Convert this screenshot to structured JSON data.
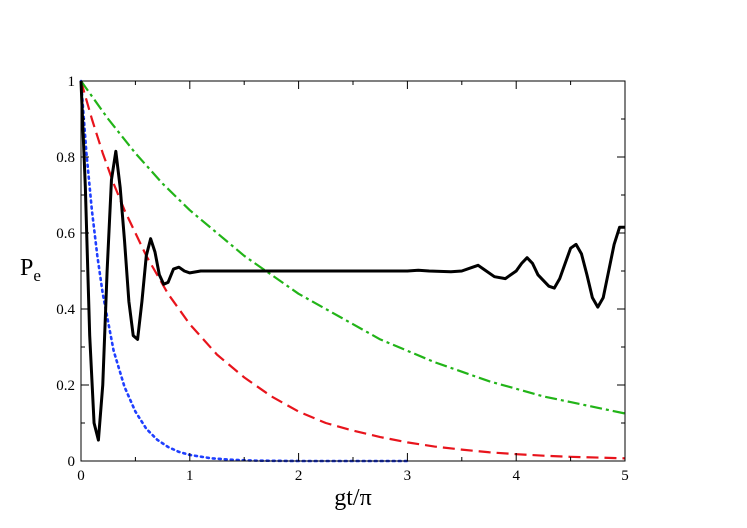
{
  "chart_data": {
    "type": "line",
    "xlabel": "gt/π",
    "ylabel_main": "P",
    "ylabel_sub": "e",
    "xlim": [
      0,
      5
    ],
    "ylim": [
      0,
      1
    ],
    "xticks": [
      0,
      1,
      2,
      3,
      4,
      5
    ],
    "xtick_labels": [
      "0",
      "1",
      "2",
      "3",
      "4",
      "5"
    ],
    "yticks": [
      0,
      0.2,
      0.4,
      0.6,
      0.8,
      1
    ],
    "ytick_labels": [
      "0",
      "0.2",
      "0.4",
      "0.6",
      "0.8",
      "1"
    ],
    "grid": false,
    "series": [
      {
        "style": "dotted",
        "color": "#1f3fff",
        "x": [
          0,
          0.05,
          0.1,
          0.15,
          0.2,
          0.3,
          0.4,
          0.5,
          0.6,
          0.7,
          0.8,
          0.9,
          1.0,
          1.2,
          1.4,
          1.6,
          1.8,
          2.0,
          2.5,
          3.0
        ],
        "y": [
          1.0,
          0.81,
          0.66,
          0.54,
          0.44,
          0.29,
          0.195,
          0.13,
          0.085,
          0.056,
          0.037,
          0.024,
          0.016,
          0.007,
          0.003,
          0.001,
          0.0005,
          0.0,
          0.0,
          0.0
        ]
      },
      {
        "style": "dashed",
        "color": "#e8141c",
        "x": [
          0,
          0.1,
          0.2,
          0.3,
          0.4,
          0.5,
          0.6,
          0.7,
          0.8,
          0.9,
          1.0,
          1.25,
          1.5,
          1.75,
          2.0,
          2.25,
          2.5,
          2.75,
          3.0,
          3.25,
          3.5,
          3.75,
          4.0,
          4.25,
          4.5,
          4.75,
          5.0
        ],
        "y": [
          1.0,
          0.9,
          0.81,
          0.73,
          0.66,
          0.6,
          0.54,
          0.49,
          0.44,
          0.4,
          0.36,
          0.28,
          0.22,
          0.17,
          0.13,
          0.1,
          0.08,
          0.063,
          0.049,
          0.038,
          0.03,
          0.023,
          0.018,
          0.014,
          0.011,
          0.009,
          0.007
        ]
      },
      {
        "style": "dash-dot",
        "color": "#22b418",
        "x": [
          0,
          0.25,
          0.5,
          0.75,
          1.0,
          1.25,
          1.5,
          1.75,
          2.0,
          2.25,
          2.5,
          2.75,
          3.0,
          3.25,
          3.5,
          3.75,
          4.0,
          4.25,
          4.5,
          4.75,
          5.0
        ],
        "y": [
          1.0,
          0.9,
          0.81,
          0.73,
          0.66,
          0.6,
          0.54,
          0.49,
          0.44,
          0.4,
          0.36,
          0.32,
          0.29,
          0.26,
          0.235,
          0.21,
          0.19,
          0.17,
          0.155,
          0.14,
          0.125
        ]
      },
      {
        "style": "solid",
        "color": "#000000",
        "x": [
          0,
          0.04,
          0.08,
          0.12,
          0.16,
          0.2,
          0.24,
          0.28,
          0.32,
          0.36,
          0.4,
          0.44,
          0.48,
          0.52,
          0.56,
          0.6,
          0.64,
          0.68,
          0.72,
          0.76,
          0.8,
          0.85,
          0.9,
          0.95,
          1.0,
          1.1,
          1.2,
          1.5,
          2.0,
          2.5,
          3.0,
          3.1,
          3.2,
          3.4,
          3.5,
          3.6,
          3.65,
          3.7,
          3.8,
          3.9,
          4.0,
          4.05,
          4.1,
          4.15,
          4.2,
          4.3,
          4.35,
          4.4,
          4.45,
          4.5,
          4.55,
          4.6,
          4.65,
          4.7,
          4.75,
          4.8,
          4.85,
          4.9,
          4.95,
          5.0
        ],
        "y": [
          1.0,
          0.72,
          0.33,
          0.1,
          0.055,
          0.2,
          0.5,
          0.74,
          0.815,
          0.72,
          0.58,
          0.42,
          0.33,
          0.32,
          0.42,
          0.54,
          0.585,
          0.55,
          0.49,
          0.465,
          0.47,
          0.505,
          0.51,
          0.5,
          0.495,
          0.5,
          0.5,
          0.5,
          0.5,
          0.5,
          0.5,
          0.502,
          0.5,
          0.498,
          0.5,
          0.51,
          0.515,
          0.505,
          0.485,
          0.48,
          0.5,
          0.52,
          0.535,
          0.52,
          0.49,
          0.46,
          0.455,
          0.48,
          0.52,
          0.56,
          0.57,
          0.545,
          0.49,
          0.43,
          0.405,
          0.43,
          0.5,
          0.57,
          0.615,
          0.615
        ]
      }
    ]
  }
}
